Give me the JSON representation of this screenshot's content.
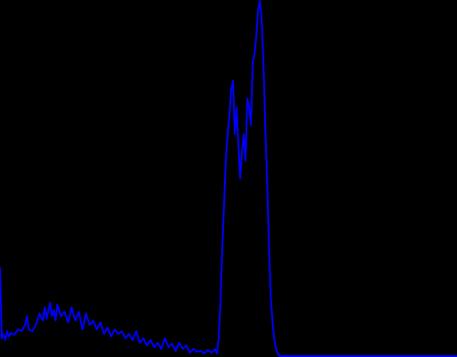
{
  "chart_data": {
    "type": "line",
    "background": "#000000",
    "x": [
      0,
      1,
      2,
      3,
      4,
      5,
      6,
      8,
      10,
      12,
      14,
      15,
      16,
      18,
      20,
      22,
      24,
      25,
      26,
      28,
      29,
      30,
      31,
      32,
      34,
      36,
      38,
      40,
      42,
      44,
      46,
      48,
      50,
      52,
      54,
      56,
      58,
      60,
      62,
      64,
      66,
      68,
      70,
      72,
      74,
      76,
      78,
      80,
      82,
      84,
      86,
      88,
      90,
      92,
      94,
      96,
      98,
      100,
      102,
      104,
      106,
      108,
      110,
      112,
      114,
      116,
      118,
      120,
      121,
      122,
      123,
      124,
      125,
      126,
      127,
      128,
      129,
      130,
      131,
      132,
      133,
      134,
      135,
      136,
      137,
      138,
      139,
      140,
      141,
      142,
      143,
      144,
      145,
      146,
      147,
      148,
      149,
      150,
      151,
      152,
      153,
      154,
      155,
      156,
      200,
      255
    ],
    "series": [
      {
        "color": "#0000ff",
        "values": [
          100,
          20,
          25,
          18,
          28,
          22,
          26,
          24,
          30,
          28,
          35,
          45,
          30,
          28,
          35,
          48,
          40,
          55,
          42,
          60,
          45,
          52,
          40,
          58,
          45,
          50,
          38,
          55,
          40,
          50,
          30,
          48,
          35,
          40,
          30,
          38,
          25,
          32,
          22,
          30,
          25,
          28,
          20,
          25,
          18,
          28,
          15,
          20,
          12,
          18,
          10,
          15,
          8,
          20,
          10,
          14,
          6,
          15,
          8,
          12,
          4,
          8,
          5,
          6,
          3,
          7,
          4,
          8,
          3,
          20,
          60,
          120,
          170,
          220,
          250,
          270,
          300,
          310,
          250,
          280,
          240,
          200,
          230,
          250,
          220,
          290,
          280,
          260,
          330,
          340,
          360,
          390,
          400,
          380,
          330,
          260,
          200,
          130,
          70,
          40,
          20,
          8,
          3,
          0,
          0,
          0
        ]
      }
    ],
    "xlim": [
      0,
      255
    ],
    "ylim": [
      0,
      400
    ]
  }
}
